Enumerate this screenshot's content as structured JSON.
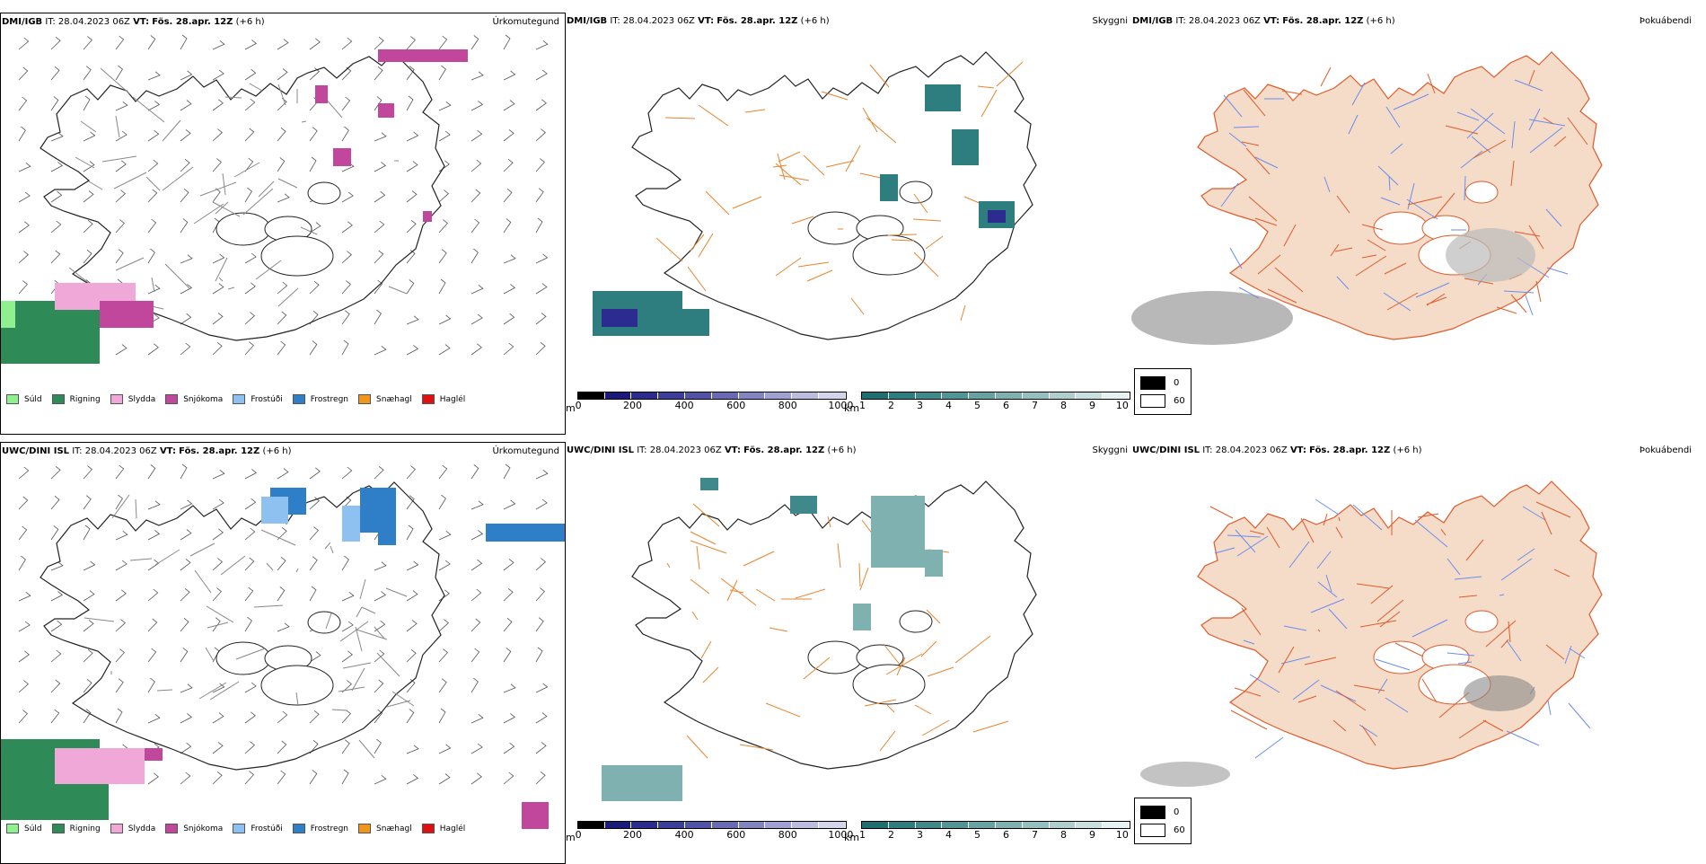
{
  "panels": {
    "p1": {
      "model": "DMI/IGB",
      "it_label": "IT:",
      "it_value": "28.04.2023 06Z",
      "vt_label": "VT:",
      "vt_value": "Fös. 28.apr. 12Z",
      "lead": "(+6 h)",
      "field": "Úrkomutegund"
    },
    "p2": {
      "model": "DMI/IGB",
      "it_label": "IT:",
      "it_value": "28.04.2023 06Z",
      "vt_label": "VT:",
      "vt_value": "Fös. 28.apr. 12Z",
      "lead": "(+6 h)",
      "field": "Skyggni"
    },
    "p3": {
      "model": "DMI/IGB",
      "it_label": "IT:",
      "it_value": "28.04.2023 06Z",
      "vt_label": "VT:",
      "vt_value": "Fös. 28.apr. 12Z",
      "lead": "(+6 h)",
      "field": "Þokuábendi"
    },
    "p4": {
      "model": "UWC/DINI ISL",
      "it_label": "IT:",
      "it_value": "28.04.2023 06Z",
      "vt_label": "VT:",
      "vt_value": "Fös. 28.apr. 12Z",
      "lead": "(+6 h)",
      "field": "Úrkomutegund"
    },
    "p5": {
      "model": "UWC/DINI ISL",
      "it_label": "IT:",
      "it_value": "28.04.2023 06Z",
      "vt_label": "VT:",
      "vt_value": "Fös. 28.apr. 12Z",
      "lead": "(+6 h)",
      "field": "Skyggni"
    },
    "p6": {
      "model": "UWC/DINI ISL",
      "it_label": "IT:",
      "it_value": "28.04.2023 06Z",
      "vt_label": "VT:",
      "vt_value": "Fös. 28.apr. 12Z",
      "lead": "(+6 h)",
      "field": "Þokuábendi"
    }
  },
  "precip_legend": {
    "items": [
      {
        "label": "Súld",
        "color": "#8ef08e"
      },
      {
        "label": "Rigning",
        "color": "#2e8b57"
      },
      {
        "label": "Slydda",
        "color": "#f0a8d8"
      },
      {
        "label": "Snjókoma",
        "color": "#c0479c"
      },
      {
        "label": "Frostúði",
        "color": "#8ec0f0"
      },
      {
        "label": "Frostregn",
        "color": "#2f7fc8"
      },
      {
        "label": "Snæhagl",
        "color": "#f0961e"
      },
      {
        "label": "Haglél",
        "color": "#e01010"
      }
    ]
  },
  "elev_bar": {
    "unit": "m",
    "ticks": [
      "0",
      "200",
      "400",
      "600",
      "800",
      "1000"
    ],
    "colors": [
      "#000000",
      "#1a1a7a",
      "#2c2c90",
      "#3d3d9c",
      "#5252a8",
      "#6a6ab4",
      "#8484c2",
      "#a0a0d2",
      "#bcbce0",
      "#d4d4ec"
    ]
  },
  "vis_bar": {
    "unit": "km",
    "ticks": [
      "1",
      "2",
      "3",
      "4",
      "5",
      "6",
      "7",
      "8",
      "9",
      "10"
    ],
    "colors": [
      "#1f6f70",
      "#2f7e7f",
      "#40898a",
      "#529596",
      "#68a3a3",
      "#7fb1b1",
      "#96bfbf",
      "#afcfcf",
      "#c8e0e0",
      "#e6f1f1"
    ]
  },
  "fog_legend": {
    "items": [
      {
        "label": "0",
        "color": "#000000"
      },
      {
        "label": "60",
        "color": "#ffffff"
      }
    ]
  },
  "colors": {
    "coast": "#222222",
    "roads": "#e8842c",
    "land_fog": "#f5dcc8",
    "rivers": "#6a8cf0",
    "fog_roads": "#e05a2a",
    "wind": "#555555"
  }
}
